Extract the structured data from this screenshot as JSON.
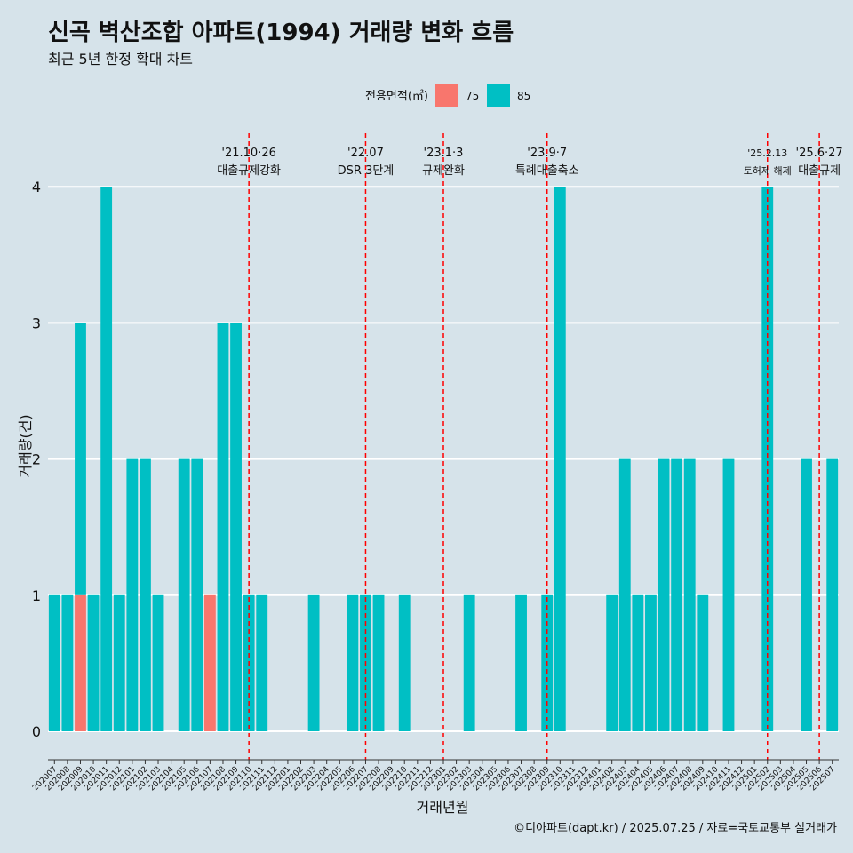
{
  "title": "신곡 벽산조합 아파트(1994) 거래량 변화 흐름",
  "subtitle": "최근 5년 한정 확대 차트",
  "caption": "©디아파트(dapt.kr) / 2025.07.25 / 자료=국토교통부 실거래가",
  "legend": {
    "title": "전용면적(㎡)",
    "items": [
      {
        "label": "75",
        "color": "#F8766D"
      },
      {
        "label": "85",
        "color": "#00BFC4"
      }
    ]
  },
  "chart_data": {
    "type": "bar",
    "stacked": true,
    "xlabel": "거래년월",
    "ylabel": "거래량(건)",
    "ylim": [
      0,
      4
    ],
    "yticks": [
      0,
      1,
      2,
      3,
      4
    ],
    "grid": true,
    "legend_position": "top",
    "categories": [
      "202007",
      "202008",
      "202009",
      "202010",
      "202011",
      "202012",
      "202101",
      "202102",
      "202103",
      "202104",
      "202105",
      "202106",
      "202107",
      "202108",
      "202109",
      "202110",
      "202111",
      "202112",
      "202201",
      "202202",
      "202203",
      "202204",
      "202205",
      "202206",
      "202207",
      "202208",
      "202209",
      "202210",
      "202211",
      "202212",
      "202301",
      "202302",
      "202303",
      "202304",
      "202305",
      "202306",
      "202307",
      "202308",
      "202309",
      "202310",
      "202311",
      "202312",
      "202401",
      "202402",
      "202403",
      "202404",
      "202405",
      "202406",
      "202407",
      "202408",
      "202409",
      "202410",
      "202411",
      "202412",
      "202501",
      "202502",
      "202503",
      "202504",
      "202505",
      "202506",
      "202507"
    ],
    "series": [
      {
        "name": "75",
        "color": "#F8766D",
        "values": [
          0,
          0,
          1,
          0,
          0,
          0,
          0,
          0,
          0,
          0,
          0,
          0,
          1,
          0,
          0,
          0,
          0,
          0,
          0,
          0,
          0,
          0,
          0,
          0,
          0,
          0,
          0,
          0,
          0,
          0,
          0,
          0,
          0,
          0,
          0,
          0,
          0,
          0,
          0,
          0,
          0,
          0,
          0,
          0,
          0,
          0,
          0,
          0,
          0,
          0,
          0,
          0,
          0,
          0,
          0,
          0,
          0,
          0,
          0,
          0,
          0
        ]
      },
      {
        "name": "85",
        "color": "#00BFC4",
        "values": [
          1,
          1,
          2,
          1,
          4,
          1,
          2,
          2,
          1,
          0,
          2,
          2,
          0,
          3,
          3,
          1,
          1,
          0,
          0,
          0,
          1,
          0,
          0,
          1,
          1,
          1,
          0,
          1,
          0,
          0,
          0,
          0,
          1,
          0,
          0,
          0,
          1,
          0,
          1,
          4,
          0,
          0,
          0,
          1,
          2,
          1,
          1,
          2,
          2,
          2,
          1,
          0,
          2,
          0,
          0,
          4,
          0,
          0,
          2,
          0,
          2
        ]
      }
    ],
    "annotations": [
      {
        "category": "202110",
        "date": "'21.10·26",
        "label": "대출규제강화"
      },
      {
        "category": "202207",
        "date": "'22.07",
        "label": "DSR 3단계"
      },
      {
        "category": "202301",
        "date": "'23.1·3",
        "label": "규제완화"
      },
      {
        "category": "202309",
        "date": "'23.9·7",
        "label": "특례대출축소"
      },
      {
        "category": "202502",
        "date": "'25.2.13",
        "label": "토허제 해제"
      },
      {
        "category": "202506",
        "date": "'25.6·27",
        "label": "대출규제"
      }
    ]
  }
}
